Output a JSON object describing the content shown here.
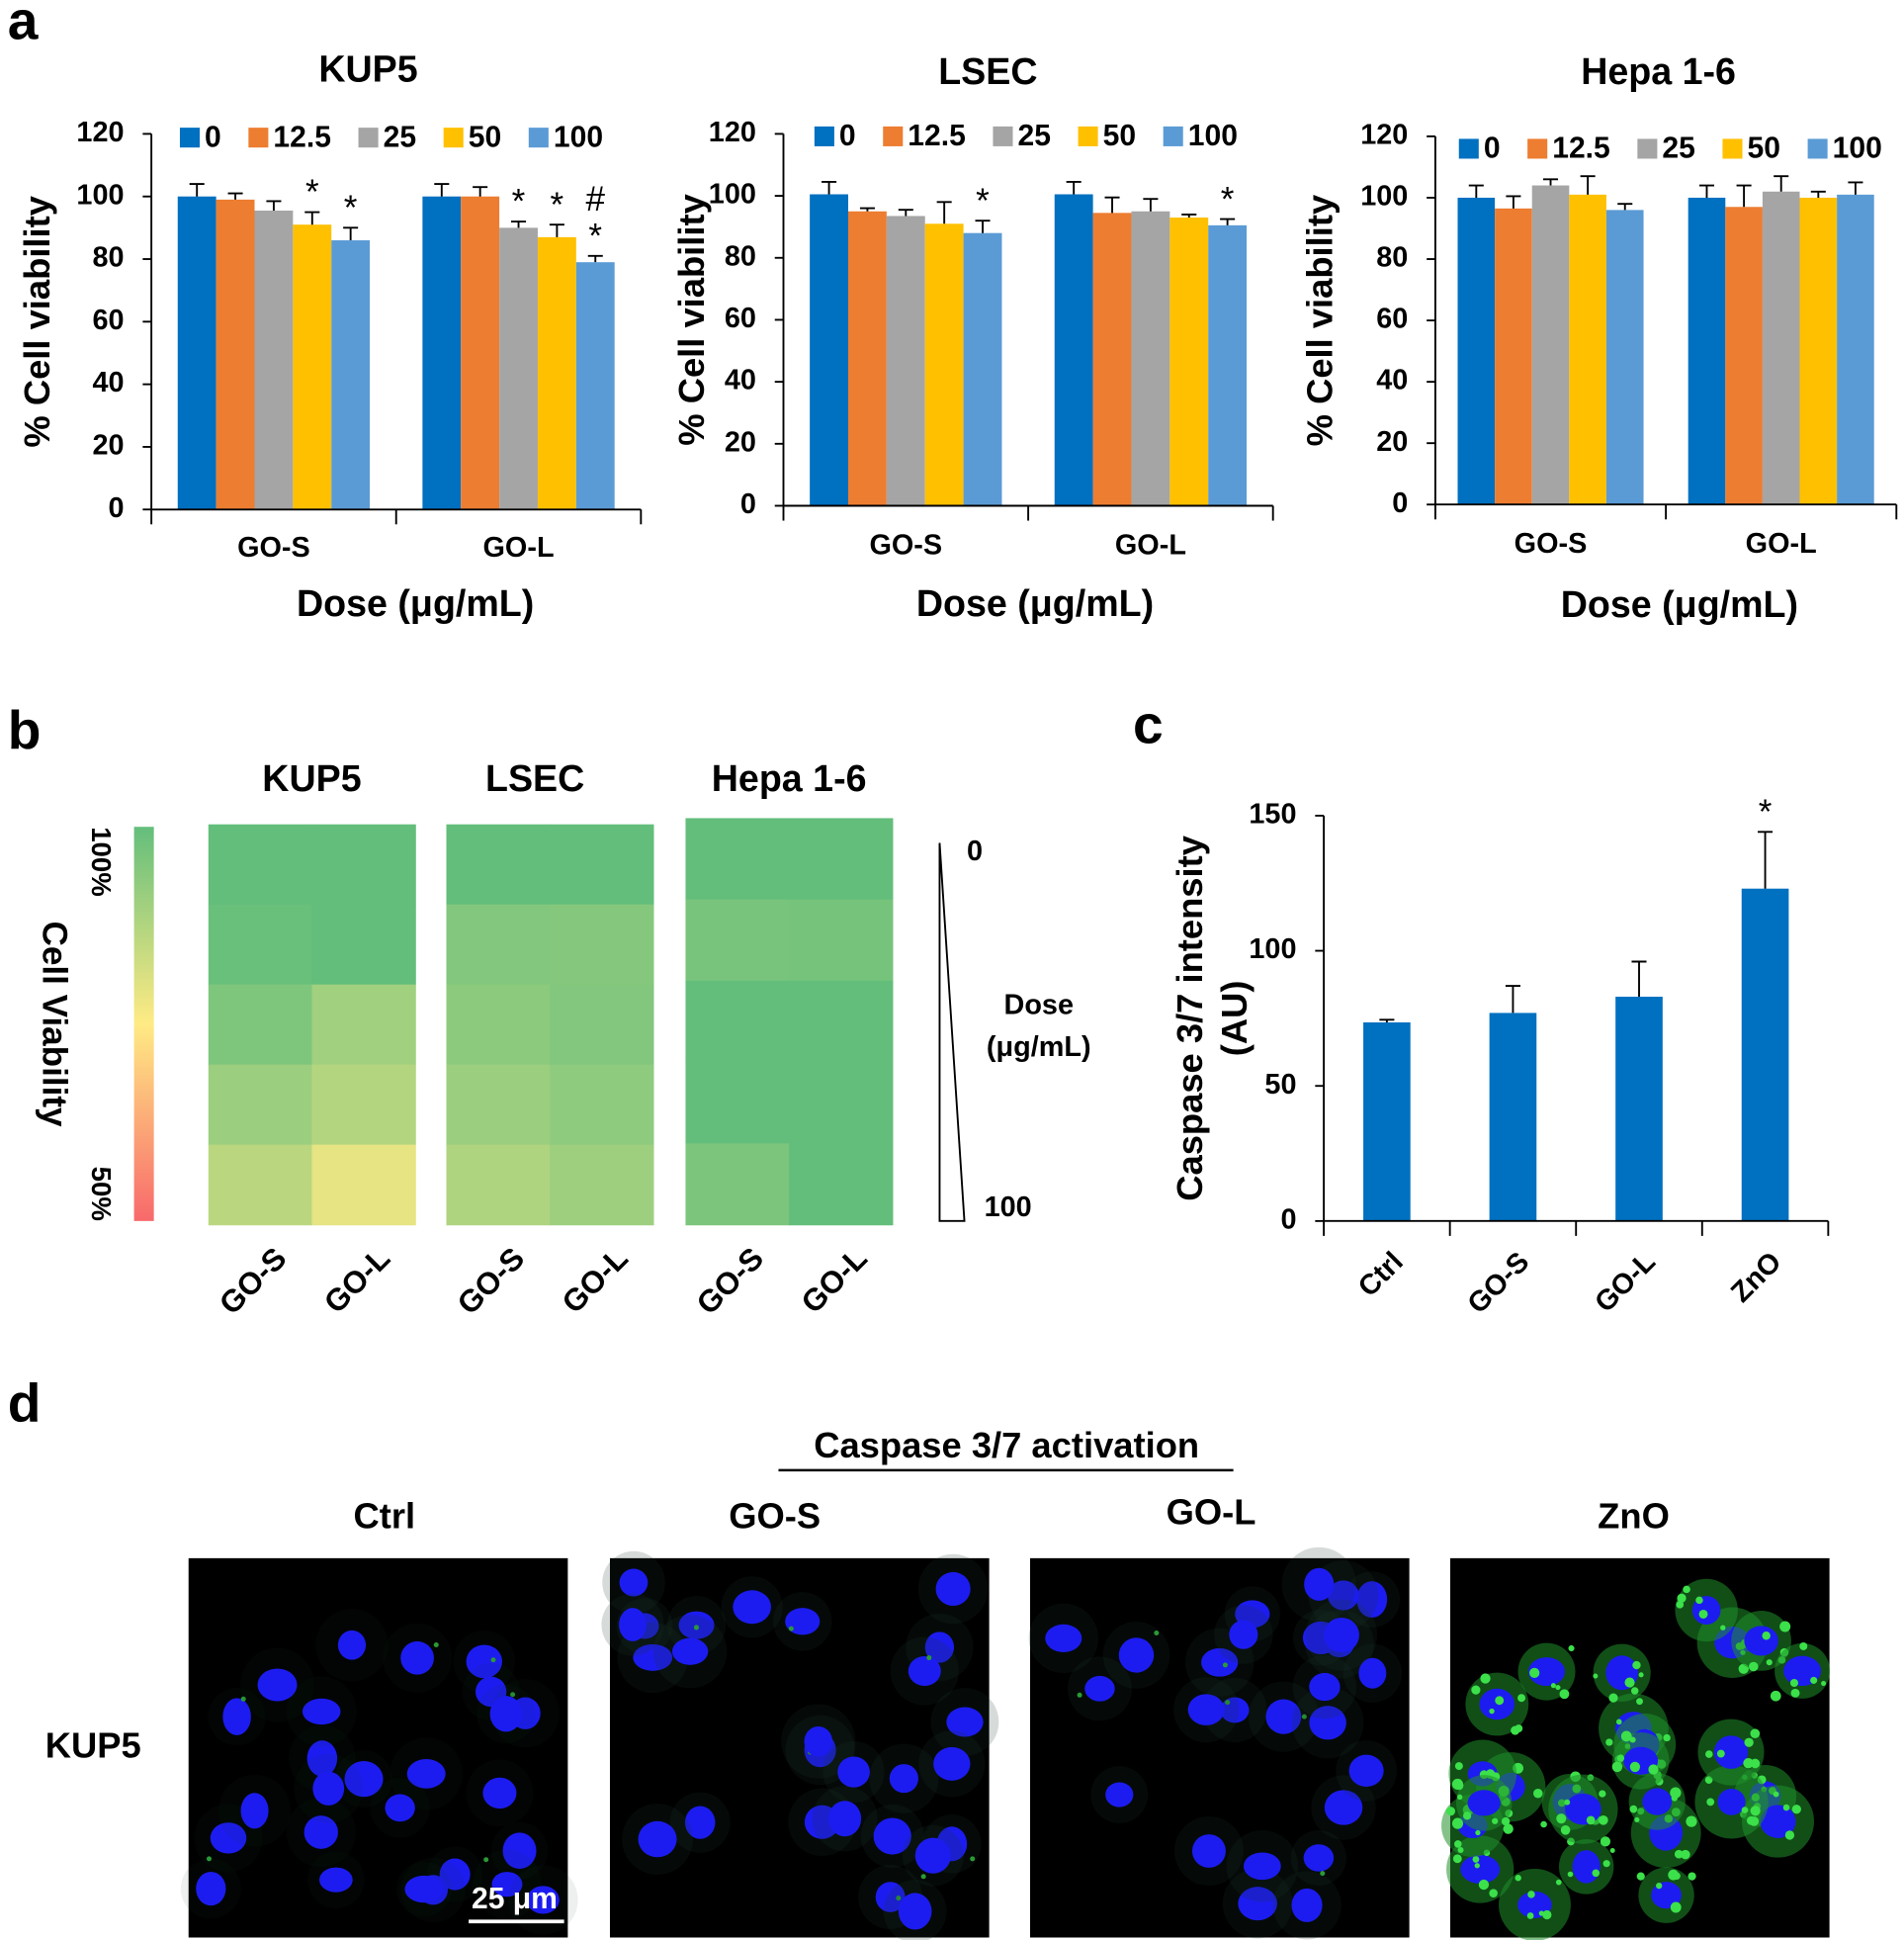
{
  "panel_labels": [
    "a",
    "b",
    "c",
    "d"
  ],
  "chart_data": [
    {
      "type": "bar",
      "title": "KUP5",
      "categories": [
        "GO-S",
        "GO-L"
      ],
      "xlabel": "Dose (μg/mL)",
      "ylabel": "% Cell viability",
      "ylim": [
        0,
        120
      ],
      "yticks": [
        0,
        20,
        40,
        60,
        80,
        100,
        120
      ],
      "legend": "top",
      "series": [
        {
          "name": "0",
          "color": "#0070c0",
          "values": [
            100,
            100
          ],
          "errors": [
            4,
            4
          ]
        },
        {
          "name": "12.5",
          "color": "#ed7d31",
          "values": [
            99,
            100
          ],
          "errors": [
            2,
            3
          ]
        },
        {
          "name": "25",
          "color": "#a5a5a5",
          "values": [
            95.5,
            90
          ],
          "errors": [
            3,
            2
          ],
          "significance": [
            null,
            [
              "*"
            ]
          ]
        },
        {
          "name": "50",
          "color": "#ffc000",
          "values": [
            91,
            87
          ],
          "errors": [
            4,
            4
          ],
          "significance": [
            [
              "*"
            ],
            [
              "*"
            ]
          ]
        },
        {
          "name": "100",
          "color": "#5b9bd5",
          "values": [
            86,
            79
          ],
          "errors": [
            4,
            2
          ],
          "significance": [
            [
              "*"
            ],
            [
              "#",
              "*"
            ]
          ]
        }
      ]
    },
    {
      "type": "bar",
      "title": "LSEC",
      "categories": [
        "GO-S",
        "GO-L"
      ],
      "xlabel": "Dose (μg/mL)",
      "ylabel": "% Cell viability",
      "ylim": [
        0,
        120
      ],
      "yticks": [
        0,
        20,
        40,
        60,
        80,
        100,
        120
      ],
      "legend": "top",
      "series": [
        {
          "name": "0",
          "color": "#0070c0",
          "values": [
            100.5,
            100.5
          ],
          "errors": [
            4,
            4
          ]
        },
        {
          "name": "12.5",
          "color": "#ed7d31",
          "values": [
            95,
            94.5
          ],
          "errors": [
            1,
            5
          ]
        },
        {
          "name": "25",
          "color": "#a5a5a5",
          "values": [
            93.5,
            95
          ],
          "errors": [
            2,
            4
          ]
        },
        {
          "name": "50",
          "color": "#ffc000",
          "values": [
            91,
            93
          ],
          "errors": [
            7,
            1
          ]
        },
        {
          "name": "100",
          "color": "#5b9bd5",
          "values": [
            88,
            90.5
          ],
          "errors": [
            4,
            2
          ],
          "significance": [
            [
              "*"
            ],
            [
              "*"
            ]
          ]
        }
      ]
    },
    {
      "type": "bar",
      "title": "Hepa 1-6",
      "categories": [
        "GO-S",
        "GO-L"
      ],
      "xlabel": "Dose (μg/mL)",
      "ylabel": "% Cell viability",
      "ylim": [
        0,
        120
      ],
      "yticks": [
        0,
        20,
        40,
        60,
        80,
        100,
        120
      ],
      "legend": "top",
      "series": [
        {
          "name": "0",
          "color": "#0070c0",
          "values": [
            100,
            100
          ],
          "errors": [
            4,
            4
          ]
        },
        {
          "name": "12.5",
          "color": "#ed7d31",
          "values": [
            96.5,
            97
          ],
          "errors": [
            4,
            7
          ]
        },
        {
          "name": "25",
          "color": "#a5a5a5",
          "values": [
            104,
            102
          ],
          "errors": [
            2,
            5
          ]
        },
        {
          "name": "50",
          "color": "#ffc000",
          "values": [
            101,
            100
          ],
          "errors": [
            6,
            2
          ]
        },
        {
          "name": "100",
          "color": "#5b9bd5",
          "values": [
            96,
            101
          ],
          "errors": [
            2,
            4
          ]
        }
      ]
    },
    {
      "type": "heatmap",
      "colorbar_label": "Cell Viability",
      "vlim": [
        50,
        100
      ],
      "colorbar_ticks": [
        {
          "value": 100,
          "label": "100%"
        },
        {
          "value": 50,
          "label": "50%"
        }
      ],
      "colors": [
        "#f8696b",
        "#ffeb84",
        "#63be7b"
      ],
      "rows": [
        "0",
        null,
        null,
        null,
        "100"
      ],
      "dose_label": [
        "Dose",
        "(μg/mL)"
      ],
      "groups": [
        {
          "name": "KUP5",
          "columns": [
            "GO-S",
            "GO-L"
          ],
          "values": [
            [
              100,
              99,
              95.5,
              91,
              86
            ],
            [
              100,
              100,
              90,
              87,
              79
            ]
          ]
        },
        {
          "name": "LSEC",
          "columns": [
            "GO-S",
            "GO-L"
          ],
          "values": [
            [
              100.5,
              95,
              93.5,
              91,
              88
            ],
            [
              100.5,
              94.5,
              95,
              93,
              90.5
            ]
          ]
        },
        {
          "name": "Hepa 1-6",
          "columns": [
            "GO-S",
            "GO-L"
          ],
          "values": [
            [
              100,
              96.5,
              104,
              101,
              96
            ],
            [
              100,
              97,
              102,
              100,
              101
            ]
          ]
        }
      ]
    },
    {
      "type": "bar",
      "categories": [
        "Ctrl",
        "GO-S",
        "GO-L",
        "ZnO"
      ],
      "ylabel": [
        "Caspase 3/7 intensity",
        "(AU)"
      ],
      "ylim": [
        0,
        150
      ],
      "yticks": [
        0,
        50,
        100,
        150
      ],
      "color": "#0070c0",
      "values": [
        73.5,
        77,
        83,
        123
      ],
      "errors": [
        1,
        10,
        13,
        21
      ],
      "significance": [
        null,
        null,
        null,
        [
          "*"
        ]
      ]
    }
  ],
  "panel_d": {
    "title": "Caspase 3/7 activation",
    "columns": [
      "Ctrl",
      "GO-S",
      "GO-L",
      "ZnO"
    ],
    "row": "KUP5",
    "scale_bar": "25 μm"
  }
}
